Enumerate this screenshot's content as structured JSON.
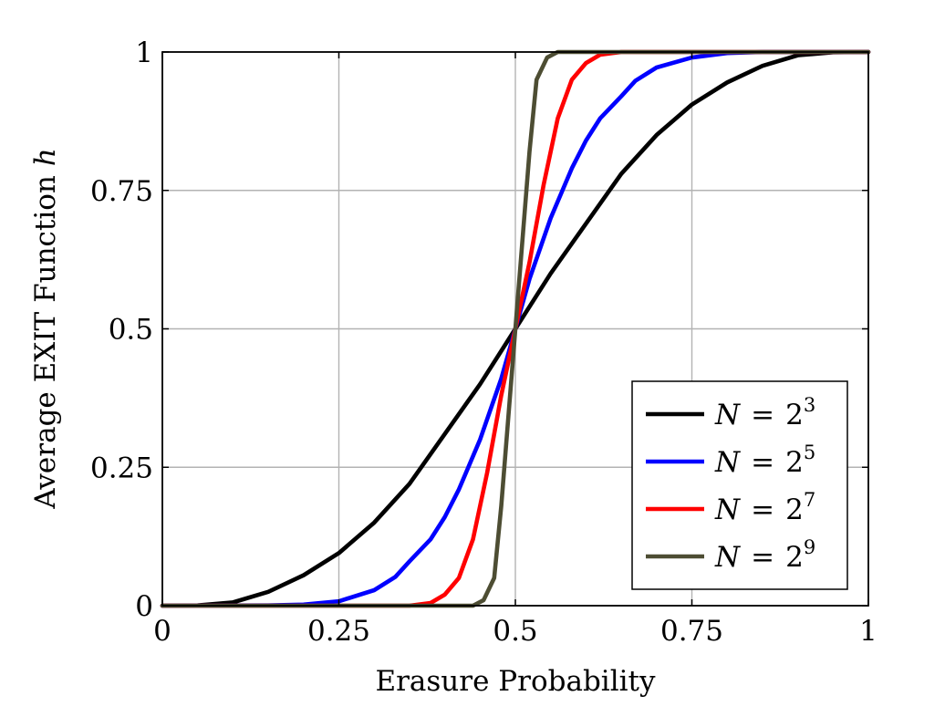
{
  "chart_data": {
    "type": "line",
    "title": "",
    "xlabel": "Erasure Probability",
    "ylabel_prefix": "Average EXIT Function",
    "ylabel_symbol": "h",
    "xlim": [
      0,
      1
    ],
    "ylim": [
      0,
      1
    ],
    "grid": true,
    "legend_position": "bottom-right",
    "x_ticks": [
      0,
      0.25,
      0.5,
      0.75,
      1
    ],
    "x_tick_labels": [
      "0",
      "0.25",
      "0.5",
      "0.75",
      "1"
    ],
    "y_ticks": [
      0,
      0.25,
      0.5,
      0.75,
      1
    ],
    "y_tick_labels": [
      "0",
      "0.25",
      "0.5",
      "0.75",
      "1"
    ],
    "series": [
      {
        "name_var": "N",
        "name_eq": "=",
        "name_base": "2",
        "name_exp": "3",
        "color": "#000000",
        "x": [
          0,
          0.05,
          0.1,
          0.15,
          0.2,
          0.25,
          0.3,
          0.35,
          0.4,
          0.45,
          0.5,
          0.55,
          0.6,
          0.65,
          0.7,
          0.75,
          0.8,
          0.85,
          0.9,
          0.95,
          1
        ],
        "y": [
          0,
          0.0005,
          0.006,
          0.025,
          0.055,
          0.095,
          0.15,
          0.22,
          0.31,
          0.4,
          0.5,
          0.6,
          0.69,
          0.78,
          0.85,
          0.905,
          0.945,
          0.975,
          0.994,
          0.9995,
          1
        ]
      },
      {
        "name_var": "N",
        "name_eq": "=",
        "name_base": "2",
        "name_exp": "5",
        "color": "#0000ff",
        "x": [
          0,
          0.15,
          0.2,
          0.25,
          0.3,
          0.33,
          0.35,
          0.38,
          0.4,
          0.42,
          0.45,
          0.48,
          0.5,
          0.52,
          0.55,
          0.58,
          0.6,
          0.62,
          0.65,
          0.67,
          0.7,
          0.75,
          0.8,
          0.85,
          1
        ],
        "y": [
          0,
          0.0005,
          0.002,
          0.008,
          0.028,
          0.052,
          0.08,
          0.12,
          0.16,
          0.21,
          0.3,
          0.41,
          0.5,
          0.59,
          0.7,
          0.79,
          0.84,
          0.88,
          0.92,
          0.948,
          0.972,
          0.99,
          0.998,
          1,
          1
        ]
      },
      {
        "name_var": "N",
        "name_eq": "=",
        "name_base": "2",
        "name_exp": "7",
        "color": "#ff0000",
        "x": [
          0,
          0.35,
          0.38,
          0.4,
          0.42,
          0.44,
          0.46,
          0.48,
          0.5,
          0.52,
          0.54,
          0.56,
          0.58,
          0.6,
          0.62,
          0.65,
          1
        ],
        "y": [
          0,
          0,
          0.005,
          0.02,
          0.05,
          0.12,
          0.24,
          0.38,
          0.5,
          0.62,
          0.76,
          0.88,
          0.95,
          0.98,
          0.995,
          1,
          1
        ]
      },
      {
        "name_var": "N",
        "name_eq": "=",
        "name_base": "2",
        "name_exp": "9",
        "color": "#4d4d33",
        "x": [
          0,
          0.44,
          0.455,
          0.47,
          0.48,
          0.49,
          0.5,
          0.51,
          0.52,
          0.53,
          0.545,
          0.56,
          1
        ],
        "y": [
          0,
          0,
          0.01,
          0.05,
          0.18,
          0.34,
          0.5,
          0.66,
          0.82,
          0.95,
          0.99,
          1,
          1
        ]
      }
    ]
  }
}
